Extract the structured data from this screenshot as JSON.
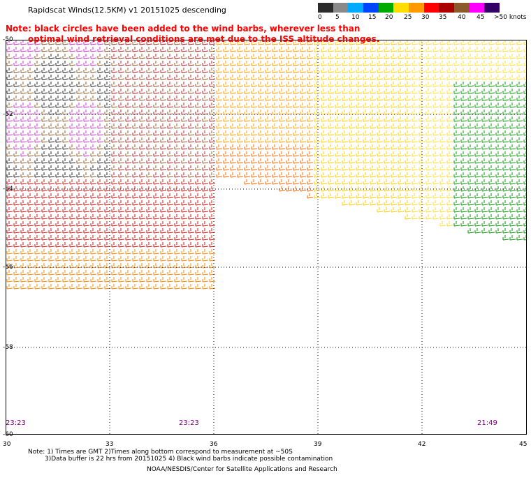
{
  "title": "Rapidscat Winds(12.5KM) v1 20151025 descending",
  "note_line1": "Note: black circles have been added to the wind barbs, wherever less than",
  "note_line2": "optimal wind retrieval conditions are met due to the ISS altitude changes.",
  "colorbar": {
    "labels": [
      "0",
      "5",
      "10",
      "15",
      "20",
      "25",
      "30",
      "35",
      "40",
      "45",
      ">50 knots"
    ],
    "colors": [
      "#2b2b2b",
      "#8a8a8a",
      "#00aaff",
      "#0044ff",
      "#00aa00",
      "#ffdd00",
      "#ff9900",
      "#ff0000",
      "#aa0000",
      "#8b5a2b",
      "#ff00ff",
      "#330066"
    ]
  },
  "axes": {
    "lat_labels": [
      "-50",
      "-52",
      "-54",
      "-56",
      "-58",
      "-60"
    ],
    "lon_labels": [
      "30",
      "33",
      "36",
      "39",
      "42",
      "45"
    ]
  },
  "times": [
    "23:23",
    "23:23",
    "21:49"
  ],
  "footer": {
    "line1": "Note: 1) Times are GMT 2)Times along bottom correspond to measurement at ~50S",
    "line2": "3)Data buffer is 22 hrs from 20151025 4) Black wind barbs indicate possible contamination",
    "line3": "NOAA/NESDIS/Center for Satellite Applications and Research"
  }
}
